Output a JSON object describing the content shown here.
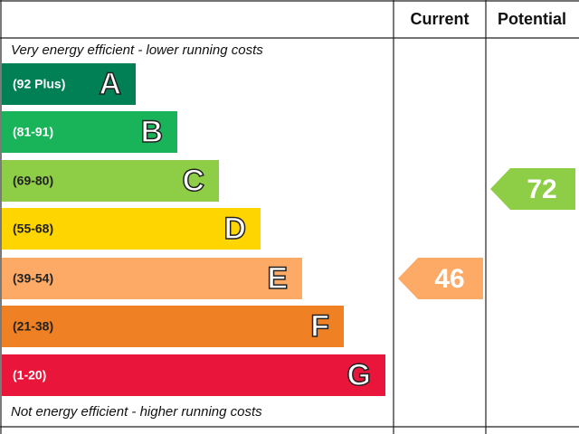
{
  "header": {
    "current": "Current",
    "potential": "Potential"
  },
  "top_note": "Very energy efficient - lower running costs",
  "bottom_note": "Not energy efficient - higher running costs",
  "bands": [
    {
      "range": "(92 Plus)",
      "letter": "A",
      "color": "#008054"
    },
    {
      "range": "(81-91)",
      "letter": "B",
      "color": "#19b459"
    },
    {
      "range": "(69-80)",
      "letter": "C",
      "color": "#8dce46"
    },
    {
      "range": "(55-68)",
      "letter": "D",
      "color": "#ffd500"
    },
    {
      "range": "(39-54)",
      "letter": "E",
      "color": "#fcaa65"
    },
    {
      "range": "(21-38)",
      "letter": "F",
      "color": "#ef8023"
    },
    {
      "range": "(1-20)",
      "letter": "G",
      "color": "#e9153b"
    }
  ],
  "current": {
    "value": 46,
    "color": "#fcaa65"
  },
  "potential": {
    "value": 72,
    "color": "#8dce46"
  }
}
